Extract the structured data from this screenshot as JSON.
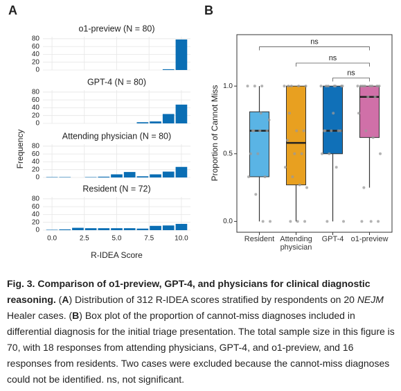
{
  "chart_data": [
    {
      "type": "histogram",
      "label": "A",
      "xlabel": "R-IDEA Score",
      "ylabel": "Frequency",
      "color": "#0a6eb4",
      "grid": true,
      "bins": [
        -0.5,
        0.5,
        1.5,
        2.5,
        3.5,
        4.5,
        5.5,
        6.5,
        7.5,
        8.5,
        9.5,
        10.5
      ],
      "xlim": [
        -0.7,
        10.7
      ],
      "xticks": [
        {
          "value": 0,
          "label": "0.0"
        },
        {
          "value": 2.5,
          "label": "2.5"
        },
        {
          "value": 5,
          "label": "5.0"
        },
        {
          "value": 7.5,
          "label": "7.5"
        },
        {
          "value": 10,
          "label": "10.0"
        }
      ],
      "ylim": [
        0,
        85
      ],
      "yticks": [
        0,
        20,
        40,
        60,
        80
      ],
      "facets": [
        {
          "title": "o1-preview (N = 80)",
          "values": [
            0,
            0,
            0,
            0,
            0,
            0,
            0,
            0,
            0,
            2,
            78
          ]
        },
        {
          "title": "GPT-4 (N = 80)",
          "values": [
            0,
            0,
            0,
            0,
            0,
            0,
            0,
            3,
            5,
            24,
            48
          ]
        },
        {
          "title": "Attending physician (N = 80)",
          "values": [
            1,
            1,
            0,
            1,
            2,
            8,
            14,
            3,
            8,
            15,
            27
          ]
        },
        {
          "title": "Resident (N = 72)",
          "values": [
            1,
            2,
            6,
            5,
            5,
            5,
            5,
            4,
            11,
            12,
            16
          ]
        }
      ]
    },
    {
      "type": "box",
      "label": "B",
      "ylabel": "Proportion of Cannot Miss",
      "categories": [
        "Resident",
        "Attending physician",
        "GPT-4",
        "o1-preview"
      ],
      "colors": [
        "#5ab4e5",
        "#e8a020",
        "#1070b8",
        "#d070a8"
      ],
      "ylim": [
        -0.08,
        1.38
      ],
      "yticks": [
        {
          "value": 0,
          "label": "0.0"
        },
        {
          "value": 0.5,
          "label": "0.5"
        },
        {
          "value": 1,
          "label": "1.0"
        }
      ],
      "stats": [
        {
          "low": 0,
          "q1": 0.33,
          "median": 0.67,
          "q3": 0.81,
          "high": 1
        },
        {
          "low": 0,
          "q1": 0.27,
          "median": 0.58,
          "q3": 1,
          "high": 1
        },
        {
          "low": 0,
          "q1": 0.5,
          "median": 0.67,
          "q3": 1,
          "high": 1
        },
        {
          "low": 0.25,
          "q1": 0.62,
          "median": 0.92,
          "q3": 1,
          "high": 1
        }
      ],
      "points": [
        [
          1,
          1,
          1,
          0.75,
          0.67,
          0.67,
          0.67,
          0.5,
          0.5,
          0.33,
          0.33,
          0.2,
          0,
          0,
          0.67,
          0.8
        ],
        [
          1,
          1,
          1,
          1,
          0.8,
          0.67,
          0.67,
          0.6,
          0.5,
          0.5,
          0.4,
          0.33,
          0.27,
          0.25,
          0,
          0,
          0,
          1
        ],
        [
          1,
          1,
          1,
          1,
          1,
          0.8,
          0.67,
          0.67,
          0.67,
          0.67,
          0.5,
          0.5,
          0.4,
          0,
          0,
          1,
          1,
          0.67
        ],
        [
          1,
          1,
          1,
          1,
          1,
          1,
          1,
          1,
          0.92,
          0.92,
          0.8,
          0.67,
          0.62,
          0.5,
          0.25,
          0,
          0,
          0
        ]
      ],
      "comparisons": [
        {
          "from": 0,
          "to": 3,
          "y": 1.29,
          "label": "ns"
        },
        {
          "from": 1,
          "to": 3,
          "y": 1.17,
          "label": "ns"
        },
        {
          "from": 2,
          "to": 3,
          "y": 1.06,
          "label": "ns"
        }
      ]
    }
  ],
  "caption": [
    {
      "text": "Fig. 3. Comparison of o1-preview, GPT-4, and physicians for clinical diagnostic reasoning.",
      "style": "bold"
    },
    {
      "text": " (",
      "style": "normal"
    },
    {
      "text": "A",
      "style": "bold"
    },
    {
      "text": ") Distribution of 312 R-IDEA scores stratified by respondents on 20 ",
      "style": "normal"
    },
    {
      "text": "NEJM",
      "style": "italic"
    },
    {
      "text": " Healer cases. (",
      "style": "normal"
    },
    {
      "text": "B",
      "style": "bold"
    },
    {
      "text": ") Box plot of the proportion of cannot-miss diagnoses included in differential diagnosis for the initial triage presentation. The total sample size in this figure is 70, with 18 responses from attending physicians, GPT-4, and o1-preview, and 16 responses from residents. Two cases were excluded because the cannot-miss diagnoses could not be identified. ns, not significant.",
      "style": "normal"
    }
  ]
}
